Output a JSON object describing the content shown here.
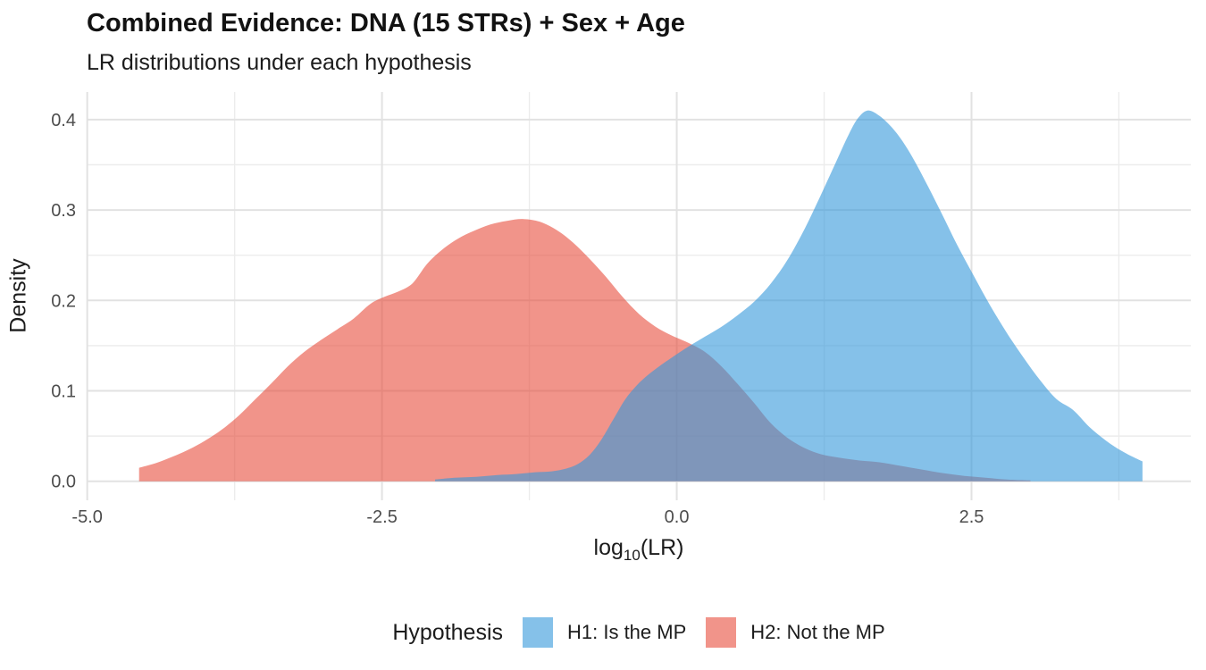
{
  "header": {
    "title": "Combined Evidence: DNA (15 STRs) + Sex + Age",
    "subtitle": "LR distributions under each hypothesis"
  },
  "chart_data": {
    "type": "area",
    "title": "Combined Evidence: DNA (15 STRs) + Sex + Age",
    "subtitle": "LR distributions under each hypothesis",
    "xlabel": "log10(LR)",
    "xlabel_parts": {
      "prefix": "log",
      "sub": "10",
      "suffix": "(LR)"
    },
    "ylabel": "Density",
    "grid": true,
    "x_axis": {
      "min": -5.005,
      "max": 4.36,
      "major_ticks": [
        -5.0,
        -2.5,
        0.0,
        2.5
      ],
      "major_labels": [
        "-5.0",
        "-2.5",
        "0.0",
        "2.5"
      ],
      "minor_ticks": [
        -3.75,
        -1.25,
        1.25,
        3.75
      ]
    },
    "y_axis": {
      "min": -0.021,
      "max": 0.4305,
      "major_ticks": [
        0.0,
        0.1,
        0.2,
        0.3,
        0.4
      ],
      "major_labels": [
        "0.0",
        "0.1",
        "0.2",
        "0.3",
        "0.4"
      ],
      "minor_ticks": [
        0.05,
        0.15,
        0.25,
        0.35
      ]
    },
    "legend": {
      "title": "Hypothesis",
      "position": "bottom"
    },
    "series": [
      {
        "name": "H1: Is the MP",
        "base_color": "#3498DB",
        "fill": "rgba(52,152,219,0.6)",
        "z": 2,
        "peak": {
          "x": 1.6,
          "density": 0.41
        },
        "points": [
          [
            -2.05,
            0.002
          ],
          [
            -1.88,
            0.004
          ],
          [
            -1.7,
            0.005
          ],
          [
            -1.52,
            0.007
          ],
          [
            -1.36,
            0.008
          ],
          [
            -1.2,
            0.01
          ],
          [
            -1.06,
            0.011
          ],
          [
            -0.94,
            0.014
          ],
          [
            -0.84,
            0.019
          ],
          [
            -0.74,
            0.029
          ],
          [
            -0.64,
            0.046
          ],
          [
            -0.54,
            0.068
          ],
          [
            -0.44,
            0.09
          ],
          [
            -0.34,
            0.106
          ],
          [
            -0.24,
            0.118
          ],
          [
            -0.14,
            0.128
          ],
          [
            -0.04,
            0.137
          ],
          [
            0.1,
            0.149
          ],
          [
            0.24,
            0.16
          ],
          [
            0.38,
            0.171
          ],
          [
            0.52,
            0.184
          ],
          [
            0.66,
            0.199
          ],
          [
            0.8,
            0.219
          ],
          [
            0.94,
            0.245
          ],
          [
            1.08,
            0.278
          ],
          [
            1.22,
            0.316
          ],
          [
            1.34,
            0.35
          ],
          [
            1.46,
            0.384
          ],
          [
            1.54,
            0.402
          ],
          [
            1.62,
            0.41
          ],
          [
            1.72,
            0.404
          ],
          [
            1.84,
            0.389
          ],
          [
            1.96,
            0.367
          ],
          [
            2.1,
            0.334
          ],
          [
            2.24,
            0.298
          ],
          [
            2.38,
            0.261
          ],
          [
            2.52,
            0.227
          ],
          [
            2.66,
            0.194
          ],
          [
            2.8,
            0.164
          ],
          [
            2.94,
            0.137
          ],
          [
            3.08,
            0.112
          ],
          [
            3.22,
            0.091
          ],
          [
            3.36,
            0.079
          ],
          [
            3.5,
            0.06
          ],
          [
            3.64,
            0.045
          ],
          [
            3.78,
            0.033
          ],
          [
            3.9,
            0.025
          ],
          [
            3.95,
            0.022
          ]
        ]
      },
      {
        "name": "H2: Not the MP",
        "base_color": "#E74C3C",
        "fill": "rgba(231,76,60,0.6)",
        "z": 1,
        "peak": {
          "x": -1.3,
          "density": 0.29
        },
        "points": [
          [
            -4.56,
            0.015
          ],
          [
            -4.42,
            0.02
          ],
          [
            -4.28,
            0.027
          ],
          [
            -4.14,
            0.035
          ],
          [
            -4.0,
            0.045
          ],
          [
            -3.86,
            0.057
          ],
          [
            -3.72,
            0.072
          ],
          [
            -3.58,
            0.09
          ],
          [
            -3.44,
            0.108
          ],
          [
            -3.3,
            0.127
          ],
          [
            -3.16,
            0.143
          ],
          [
            -3.02,
            0.156
          ],
          [
            -2.88,
            0.168
          ],
          [
            -2.74,
            0.18
          ],
          [
            -2.6,
            0.196
          ],
          [
            -2.48,
            0.204
          ],
          [
            -2.36,
            0.21
          ],
          [
            -2.24,
            0.219
          ],
          [
            -2.12,
            0.24
          ],
          [
            -2.0,
            0.255
          ],
          [
            -1.86,
            0.268
          ],
          [
            -1.72,
            0.277
          ],
          [
            -1.58,
            0.284
          ],
          [
            -1.44,
            0.288
          ],
          [
            -1.3,
            0.29
          ],
          [
            -1.16,
            0.287
          ],
          [
            -1.02,
            0.278
          ],
          [
            -0.88,
            0.264
          ],
          [
            -0.74,
            0.246
          ],
          [
            -0.6,
            0.226
          ],
          [
            -0.46,
            0.204
          ],
          [
            -0.32,
            0.185
          ],
          [
            -0.18,
            0.171
          ],
          [
            -0.04,
            0.161
          ],
          [
            0.1,
            0.153
          ],
          [
            0.24,
            0.143
          ],
          [
            0.38,
            0.127
          ],
          [
            0.52,
            0.107
          ],
          [
            0.66,
            0.086
          ],
          [
            0.8,
            0.064
          ],
          [
            0.94,
            0.048
          ],
          [
            1.08,
            0.037
          ],
          [
            1.22,
            0.03
          ],
          [
            1.38,
            0.026
          ],
          [
            1.55,
            0.023
          ],
          [
            1.72,
            0.021
          ],
          [
            1.9,
            0.017
          ],
          [
            2.08,
            0.013
          ],
          [
            2.26,
            0.009
          ],
          [
            2.44,
            0.006
          ],
          [
            2.62,
            0.004
          ],
          [
            2.8,
            0.002
          ],
          [
            3.0,
            0.001
          ]
        ]
      }
    ],
    "colors": {
      "grid_major": "#E2E2E2",
      "grid_minor": "#ECECEC",
      "tick_label": "#4D4D4D",
      "text": "#1C1C1C",
      "background": "#FFFFFF"
    }
  }
}
